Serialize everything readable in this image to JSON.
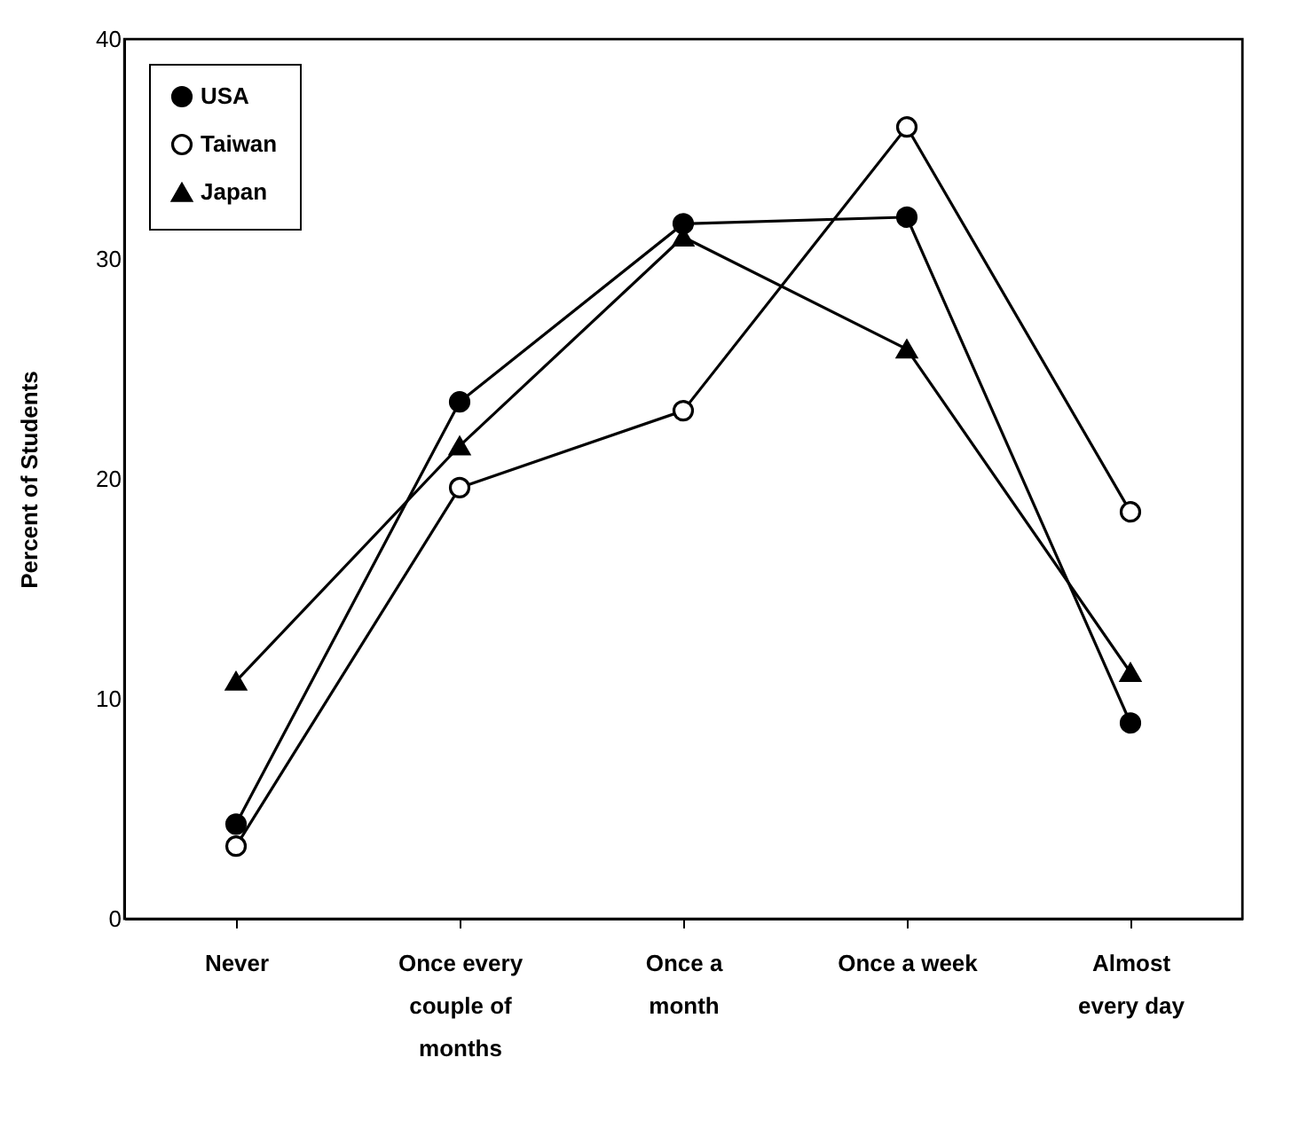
{
  "chart_data": {
    "type": "line",
    "ylabel": "Percent of Students",
    "categories": [
      "Never",
      "Once every couple of months",
      "Once a month",
      "Once a week",
      "Almost every day"
    ],
    "series": [
      {
        "name": "USA",
        "color": "#000000",
        "marker": "circle",
        "values": [
          4.3,
          23.5,
          31.6,
          31.9,
          8.9
        ]
      },
      {
        "name": "Taiwan",
        "color": "#000000",
        "marker": "circle",
        "values": [
          3.3,
          19.6,
          23.1,
          36.0,
          18.5
        ]
      },
      {
        "name": "Japan",
        "color": "#000000",
        "marker": "triangle",
        "values": [
          10.8,
          21.5,
          31.0,
          25.9,
          11.2
        ]
      }
    ],
    "ylim": [
      0,
      40
    ],
    "yticks": [
      0,
      10,
      20,
      30,
      40
    ],
    "grid": false,
    "legend": "top left"
  }
}
